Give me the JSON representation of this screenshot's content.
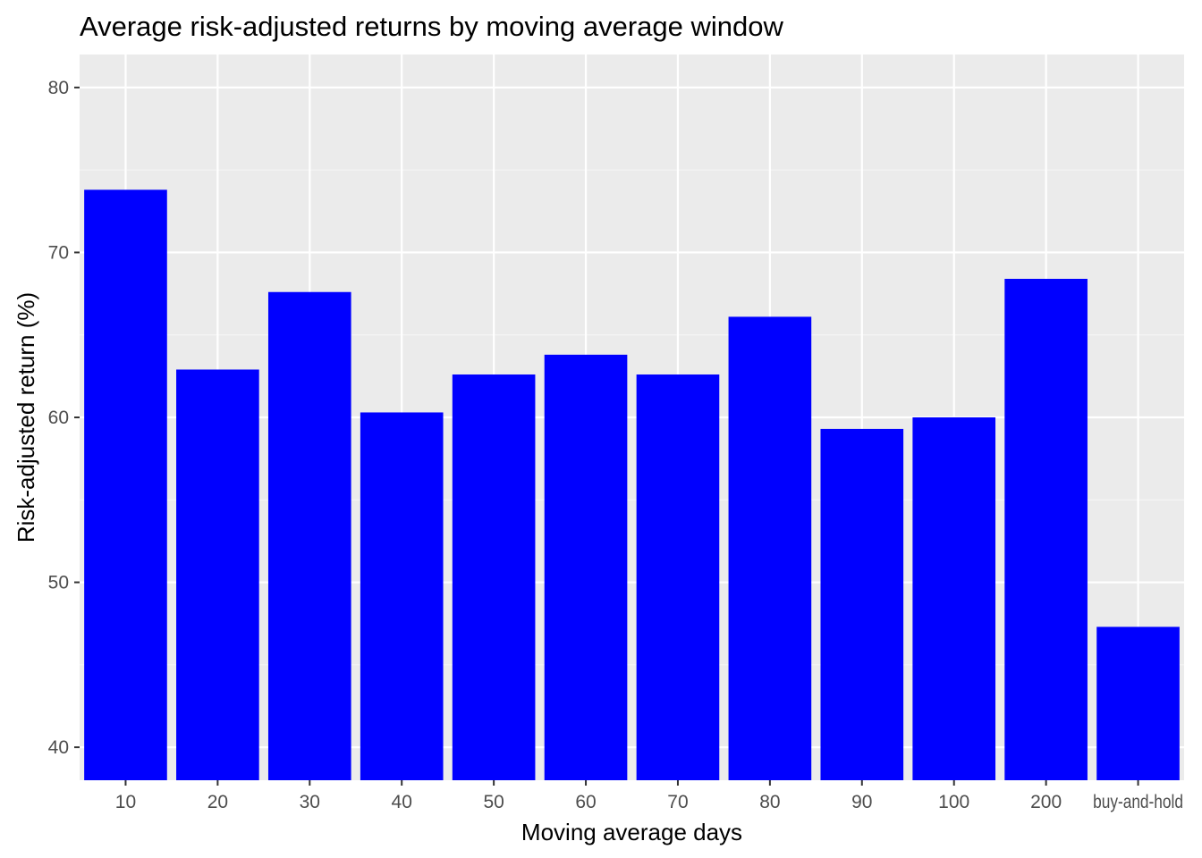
{
  "chart_data": {
    "type": "bar",
    "title": "Average risk-adjusted returns by moving average window",
    "xlabel": "Moving average days",
    "ylabel": "Risk-adjusted return (%)",
    "categories": [
      "10",
      "20",
      "30",
      "40",
      "50",
      "60",
      "70",
      "80",
      "90",
      "100",
      "200",
      "buy-and-hold"
    ],
    "values": [
      73.8,
      62.9,
      67.6,
      60.3,
      62.6,
      63.8,
      62.6,
      66.1,
      59.3,
      60.0,
      68.4,
      47.3
    ],
    "ylim": [
      38,
      82
    ],
    "yticks": [
      40,
      50,
      60,
      70,
      80
    ],
    "ytick_labels": [
      "40",
      "50",
      "60",
      "70",
      "80"
    ],
    "grid": true,
    "legend": "none",
    "colors": {
      "bar_fill": "#0000FF",
      "panel_background": "#EBEBEB",
      "grid_major": "#FFFFFF",
      "grid_minor": "#F5F5F5",
      "tick_label": "#4D4D4D",
      "axis_tick": "#333333",
      "text": "#000000"
    }
  }
}
